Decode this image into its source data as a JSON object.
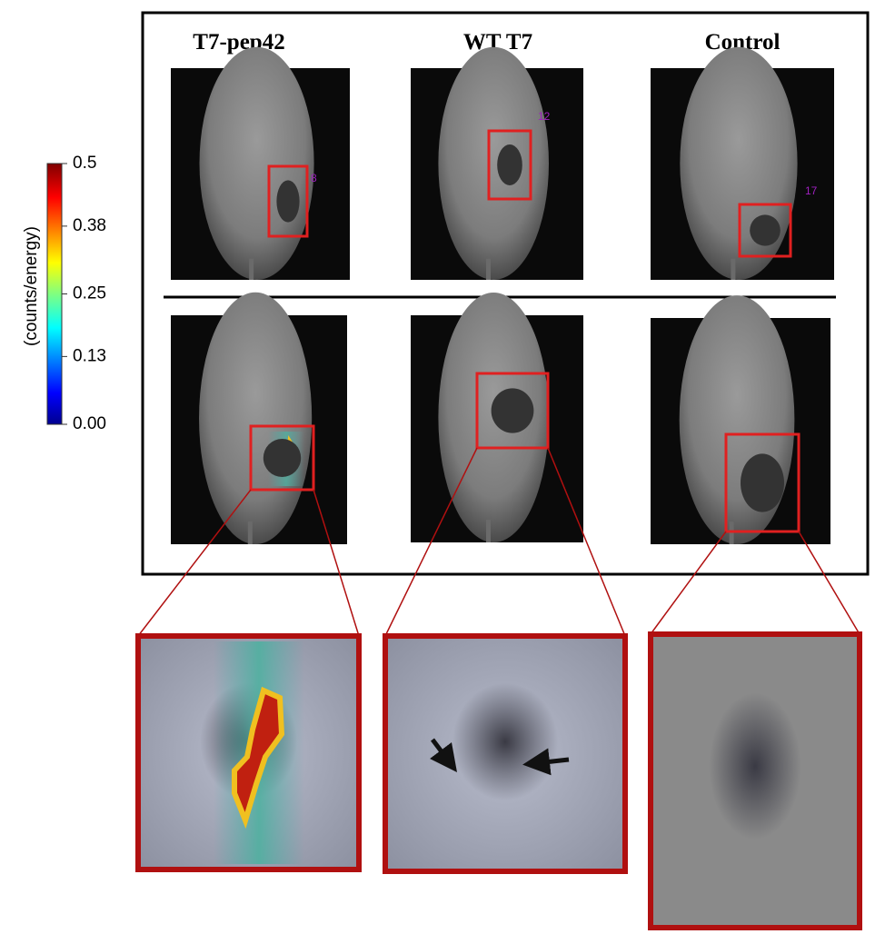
{
  "columns": [
    "T7-pep42",
    "WT T7",
    "Control"
  ],
  "colorbar": {
    "label": "(counts/energy)",
    "ticks": [
      0.5,
      0.38,
      0.25,
      0.13,
      {
        "value": 0,
        "label": "0.00"
      }
    ]
  },
  "roi_labels": [
    "8",
    "12",
    "17"
  ]
}
